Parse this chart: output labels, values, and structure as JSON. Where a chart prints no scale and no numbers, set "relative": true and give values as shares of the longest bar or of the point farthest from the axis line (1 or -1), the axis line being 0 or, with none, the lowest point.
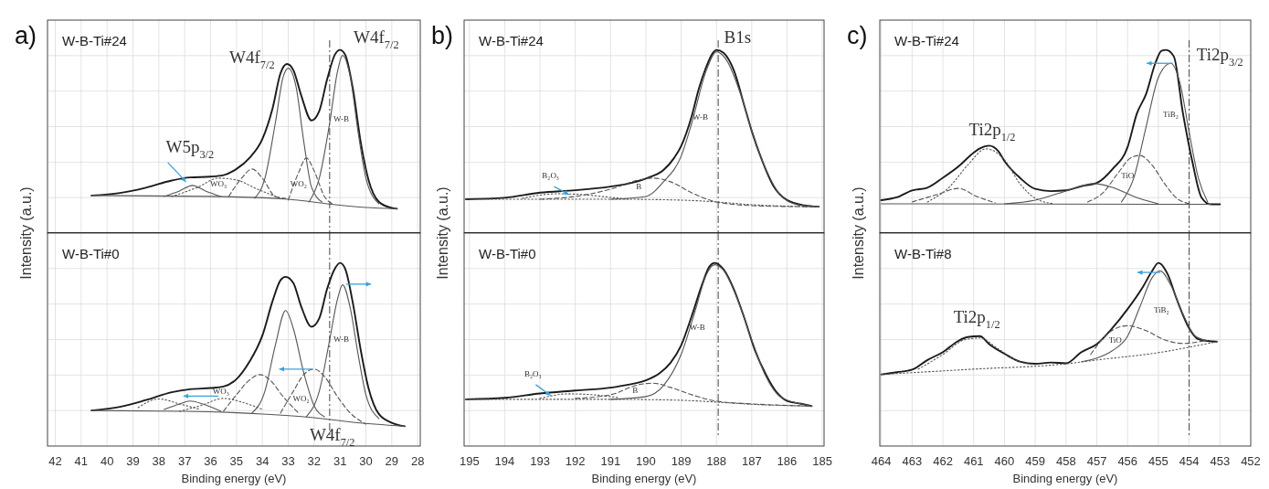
{
  "chart_data": [
    {
      "type": "line",
      "relative": true,
      "title": "W-B-Ti#24",
      "ylabel": "Intensity (a.u.)",
      "xlim": [
        42.3,
        27.9
      ],
      "xticks": [
        42,
        41,
        40,
        39,
        38,
        37,
        36,
        35,
        34,
        33,
        32,
        31,
        30,
        29,
        28
      ],
      "tick_labels": false,
      "grid": true,
      "series": [
        {
          "color": "#1a1a1a",
          "line_style": "solid",
          "x": [
            40.6,
            39.5,
            38.5,
            37.5,
            36.8,
            36,
            35.5,
            35,
            34.5,
            34,
            33.6,
            33.3,
            33.05,
            32.8,
            32.5,
            32.1,
            31.8,
            31.5,
            31.2,
            31.0,
            30.8,
            30.5,
            30.2,
            29.9,
            29.5,
            29,
            28.8
          ],
          "values": [
            0.205,
            0.219,
            0.248,
            0.287,
            0.304,
            0.308,
            0.316,
            0.35,
            0.41,
            0.513,
            0.684,
            0.872,
            0.923,
            0.889,
            0.752,
            0.615,
            0.667,
            0.838,
            0.974,
            1.0,
            0.974,
            0.786,
            0.496,
            0.291,
            0.171,
            0.137,
            0.133
          ]
        },
        {
          "color": "#555555",
          "line_style": "solid",
          "x": [
            40.6,
            36,
            33,
            31.5,
            30,
            28.8
          ],
          "values": [
            0.205,
            0.2,
            0.185,
            0.16,
            0.14,
            0.133
          ]
        },
        {
          "color": "#555555",
          "line_style": "solid",
          "x": [
            32.2,
            31.8,
            31.4,
            31.1,
            30.9,
            30.6,
            30.3,
            30.0,
            29.5
          ],
          "values": [
            0.17,
            0.3,
            0.6,
            0.88,
            0.97,
            0.85,
            0.55,
            0.3,
            0.16
          ]
        },
        {
          "color": "#555555",
          "line_style": "solid",
          "x": [
            34.3,
            33.9,
            33.5,
            33.2,
            33.0,
            32.7,
            32.4,
            32.1,
            31.7
          ],
          "values": [
            0.19,
            0.3,
            0.6,
            0.85,
            0.9,
            0.8,
            0.5,
            0.25,
            0.17
          ]
        },
        {
          "color": "#555555",
          "line_style": "dashed",
          "x": [
            33.0,
            32.6,
            32.3,
            32.0,
            31.6,
            31.3
          ],
          "values": [
            0.18,
            0.33,
            0.41,
            0.34,
            0.2,
            0.16
          ]
        },
        {
          "color": "#555555",
          "line_style": "dashed",
          "x": [
            35.3,
            34.8,
            34.4,
            34.0,
            33.5,
            33.1
          ],
          "values": [
            0.2,
            0.3,
            0.35,
            0.3,
            0.2,
            0.19
          ]
        },
        {
          "color": "#555555",
          "line_style": "dotted",
          "x": [
            37.5,
            36.5,
            35.7,
            35.0,
            34.2,
            33.3
          ],
          "values": [
            0.2,
            0.25,
            0.3,
            0.29,
            0.24,
            0.19
          ]
        },
        {
          "color": "#555555",
          "line_style": "solid",
          "x": [
            37.8,
            37.2,
            36.7,
            36.2,
            35.6
          ],
          "values": [
            0.2,
            0.23,
            0.26,
            0.23,
            0.2
          ]
        }
      ],
      "ref_lines": [
        {
          "axis": "x",
          "value": 31.4
        }
      ],
      "annotations": [
        "a)",
        "W5p$_{3/2}$",
        "W4f$_{7/2}$",
        "W4f$_{7/2}$",
        "WO₃",
        "WO₂",
        "W-B"
      ]
    },
    {
      "type": "line",
      "relative": true,
      "title": "W-B-Ti#0",
      "xlabel": "Binding energy (eV)",
      "xlim": [
        42.3,
        27.9
      ],
      "xticks": [
        42,
        41,
        40,
        39,
        38,
        37,
        36,
        35,
        34,
        33,
        32,
        31,
        30,
        29,
        28
      ],
      "tick_labels": "x",
      "grid": true,
      "series": [
        {
          "color": "#1a1a1a",
          "line_style": "solid",
          "x": [
            40.6,
            39.5,
            38.5,
            37.5,
            36.8,
            36,
            35.5,
            35,
            34.5,
            34,
            33.6,
            33.3,
            33.1,
            32.8,
            32.5,
            32.1,
            31.8,
            31.5,
            31.2,
            31.0,
            30.8,
            30.5,
            30.2,
            29.9,
            29.5,
            29,
            28.5
          ],
          "values": [
            0.194,
            0.214,
            0.251,
            0.294,
            0.31,
            0.317,
            0.325,
            0.365,
            0.46,
            0.603,
            0.794,
            0.905,
            0.924,
            0.889,
            0.762,
            0.651,
            0.698,
            0.857,
            0.968,
            1.0,
            0.968,
            0.778,
            0.524,
            0.317,
            0.175,
            0.127,
            0.108
          ]
        },
        {
          "color": "#555555",
          "line_style": "solid",
          "x": [
            40.6,
            37,
            34,
            32,
            30.5,
            28.5
          ],
          "values": [
            0.194,
            0.19,
            0.175,
            0.155,
            0.13,
            0.108
          ]
        },
        {
          "color": "#555555",
          "line_style": "solid",
          "x": [
            32.3,
            31.8,
            31.4,
            31.1,
            30.9,
            30.6,
            30.3,
            30.0,
            29.5
          ],
          "values": [
            0.16,
            0.3,
            0.58,
            0.8,
            0.88,
            0.75,
            0.5,
            0.28,
            0.15
          ]
        },
        {
          "color": "#555555",
          "line_style": "solid",
          "x": [
            34.4,
            33.9,
            33.5,
            33.1,
            32.8,
            32.4,
            32.0,
            31.6
          ],
          "values": [
            0.18,
            0.3,
            0.55,
            0.74,
            0.64,
            0.4,
            0.22,
            0.16
          ]
        },
        {
          "color": "#555555",
          "line_style": "dashed",
          "x": [
            33.3,
            32.8,
            32.4,
            32.0,
            31.6,
            31.1,
            30.6,
            30.0
          ],
          "values": [
            0.18,
            0.3,
            0.39,
            0.42,
            0.38,
            0.27,
            0.18,
            0.12
          ]
        },
        {
          "color": "#555555",
          "line_style": "dashed",
          "x": [
            35.5,
            35.0,
            34.5,
            34.1,
            33.7,
            33.2,
            32.6
          ],
          "values": [
            0.19,
            0.28,
            0.36,
            0.39,
            0.36,
            0.27,
            0.18
          ]
        },
        {
          "color": "#555555",
          "line_style": "dotted",
          "x": [
            37.2,
            36.4,
            35.5,
            34.8,
            34.0
          ],
          "values": [
            0.19,
            0.22,
            0.26,
            0.24,
            0.2
          ]
        },
        {
          "color": "#555555",
          "line_style": "dotted",
          "x": [
            38.8,
            38.0,
            37.2,
            36.4
          ],
          "values": [
            0.21,
            0.257,
            0.23,
            0.2
          ]
        },
        {
          "color": "#555555",
          "line_style": "solid",
          "x": [
            37.8,
            37.2,
            36.8,
            36.3,
            35.6
          ],
          "values": [
            0.2,
            0.23,
            0.246,
            0.23,
            0.19
          ]
        }
      ],
      "ref_lines": [
        {
          "axis": "x",
          "value": 31.4
        }
      ],
      "annotations": [
        "WO₃",
        "WO₂",
        "W-B",
        "W4f$_{7/2}$"
      ]
    },
    {
      "type": "line",
      "relative": true,
      "title": "W-B-Ti#24",
      "ylabel": "Intensity (a.u.)",
      "xlim": [
        195.15,
        184.95
      ],
      "xticks": [
        195,
        194,
        193,
        192,
        191,
        190,
        189,
        188,
        187,
        186,
        185
      ],
      "tick_labels": false,
      "grid": true,
      "series": [
        {
          "color": "#1a1a1a",
          "line_style": "solid",
          "x": [
            195.1,
            194,
            193,
            192,
            191,
            190.5,
            190,
            189.5,
            189.2,
            189,
            188.7,
            188.5,
            188.3,
            188.1,
            188.0,
            187.8,
            187.5,
            187.2,
            187.0,
            186.7,
            186.4,
            186.0,
            185.5,
            185.1
          ],
          "values": [
            0.185,
            0.193,
            0.221,
            0.234,
            0.254,
            0.27,
            0.298,
            0.344,
            0.41,
            0.475,
            0.639,
            0.787,
            0.902,
            0.984,
            1.0,
            0.984,
            0.885,
            0.689,
            0.557,
            0.393,
            0.262,
            0.18,
            0.151,
            0.144
          ]
        },
        {
          "color": "#555555",
          "line_style": "solid",
          "x": [
            191,
            190,
            189.5,
            189,
            188.7,
            188.3,
            188.0,
            187.7,
            187.3,
            187.0,
            186.6,
            186.2,
            185.7,
            185.1
          ],
          "values": [
            0.185,
            0.2,
            0.28,
            0.42,
            0.6,
            0.88,
            0.99,
            0.94,
            0.75,
            0.56,
            0.35,
            0.21,
            0.155,
            0.144
          ]
        },
        {
          "color": "#555555",
          "line_style": "dashed",
          "x": [
            193,
            192,
            191,
            190.2,
            189.8,
            189.3,
            188.7,
            188,
            187,
            186,
            185.1
          ],
          "values": [
            0.185,
            0.2,
            0.24,
            0.29,
            0.3,
            0.28,
            0.22,
            0.17,
            0.15,
            0.145,
            0.144
          ]
        },
        {
          "color": "#555555",
          "line_style": "dotted",
          "x": [
            193.5,
            192.5,
            191.8,
            191,
            190.5
          ],
          "values": [
            0.19,
            0.215,
            0.21,
            0.195,
            0.185
          ]
        },
        {
          "color": "#555555",
          "line_style": "dotted",
          "x": [
            195.1,
            191,
            189,
            188,
            187,
            185.1
          ],
          "values": [
            0.185,
            0.185,
            0.18,
            0.17,
            0.155,
            0.144
          ]
        }
      ],
      "ref_lines": [
        {
          "axis": "x",
          "value": 187.95
        }
      ],
      "annotations": [
        "b)",
        "B1s",
        "W-B",
        "B",
        "B₂O₃"
      ]
    },
    {
      "type": "line",
      "relative": true,
      "title": "W-B-Ti#0",
      "xlabel": "Binding energy (eV)",
      "xlim": [
        195.15,
        184.95
      ],
      "xticks": [
        195,
        194,
        193,
        192,
        191,
        190,
        189,
        188,
        187,
        186,
        185
      ],
      "tick_labels": "x",
      "grid": true,
      "series": [
        {
          "color": "#1a1a1a",
          "line_style": "solid",
          "x": [
            195.1,
            194,
            193,
            192,
            191,
            190.5,
            190,
            189.6,
            189.3,
            189,
            188.7,
            188.4,
            188.2,
            188.05,
            187.8,
            187.5,
            187.2,
            186.9,
            186.6,
            186.3,
            186.0,
            185.6,
            185.3
          ],
          "values": [
            0.255,
            0.263,
            0.287,
            0.303,
            0.319,
            0.335,
            0.359,
            0.399,
            0.455,
            0.55,
            0.71,
            0.885,
            0.98,
            1.0,
            0.965,
            0.853,
            0.694,
            0.518,
            0.391,
            0.295,
            0.247,
            0.231,
            0.218
          ]
        },
        {
          "color": "#555555",
          "line_style": "solid",
          "x": [
            191,
            190,
            189.5,
            189,
            188.6,
            188.3,
            188.05,
            187.8,
            187.4,
            187.0,
            186.6,
            186.2,
            185.6,
            185.3
          ],
          "values": [
            0.255,
            0.27,
            0.33,
            0.5,
            0.74,
            0.93,
            0.99,
            0.96,
            0.8,
            0.58,
            0.38,
            0.27,
            0.23,
            0.218
          ]
        },
        {
          "color": "#555555",
          "line_style": "dashed",
          "x": [
            192,
            191,
            190.2,
            189.8,
            189.3,
            188.7,
            188,
            187,
            186,
            185.3
          ],
          "values": [
            0.26,
            0.28,
            0.335,
            0.343,
            0.32,
            0.28,
            0.245,
            0.23,
            0.222,
            0.218
          ]
        },
        {
          "color": "#555555",
          "line_style": "dotted",
          "x": [
            193,
            192.2,
            191.5,
            190.8
          ],
          "values": [
            0.26,
            0.285,
            0.28,
            0.265
          ]
        },
        {
          "color": "#555555",
          "line_style": "dotted",
          "x": [
            195.1,
            191,
            189,
            188,
            187,
            185.3
          ],
          "values": [
            0.255,
            0.255,
            0.25,
            0.24,
            0.228,
            0.218
          ]
        }
      ],
      "ref_lines": [
        {
          "axis": "x",
          "value": 187.95
        }
      ],
      "annotations": [
        "W-B",
        "B",
        "B₂O₃"
      ]
    },
    {
      "type": "line",
      "relative": true,
      "title": "W-B-Ti#24",
      "ylabel": "Intensity (a.u.)",
      "xlim": [
        464.05,
        452
      ],
      "xticks": [
        464,
        463,
        462,
        461,
        460,
        459,
        458,
        457,
        456,
        455,
        454,
        453,
        452
      ],
      "tick_labels": false,
      "grid": true,
      "series": [
        {
          "color": "#1a1a1a",
          "line_style": "solid",
          "x": [
            464,
            463.5,
            463,
            462.5,
            462,
            461.5,
            461,
            460.8,
            460.5,
            460.2,
            460,
            459.5,
            459,
            458.5,
            458,
            457.5,
            457,
            456.5,
            456,
            455.7,
            455.4,
            455.1,
            454.9,
            454.75,
            454.5,
            454.2,
            453.9,
            453.6,
            453.3,
            453.0
          ],
          "values": [
            0.18,
            0.195,
            0.233,
            0.248,
            0.302,
            0.363,
            0.439,
            0.462,
            0.477,
            0.447,
            0.393,
            0.302,
            0.241,
            0.229,
            0.233,
            0.256,
            0.274,
            0.348,
            0.47,
            0.652,
            0.759,
            0.927,
            0.995,
            1.0,
            0.965,
            0.652,
            0.393,
            0.195,
            0.157,
            0.157
          ]
        },
        {
          "color": "#555555",
          "line_style": "solid",
          "x": [
            456.2,
            455.8,
            455.4,
            455.0,
            454.6,
            454.3,
            454.0,
            453.7,
            453.4
          ],
          "values": [
            0.17,
            0.3,
            0.58,
            0.85,
            0.927,
            0.82,
            0.55,
            0.3,
            0.17
          ]
        },
        {
          "color": "#555555",
          "line_style": "dashed",
          "x": [
            457.3,
            456.8,
            456.3,
            455.9,
            455.6,
            455.2,
            454.8,
            454.4,
            454.0
          ],
          "values": [
            0.17,
            0.22,
            0.33,
            0.41,
            0.424,
            0.37,
            0.27,
            0.19,
            0.16
          ]
        },
        {
          "color": "#555555",
          "line_style": "solid",
          "x": [
            460,
            459,
            458,
            457.1,
            456.5,
            455.8,
            455
          ],
          "values": [
            0.16,
            0.18,
            0.23,
            0.27,
            0.25,
            0.2,
            0.16
          ]
        },
        {
          "color": "#555555",
          "line_style": "dotted",
          "x": [
            462.5,
            461.8,
            461.2,
            460.6,
            460.0,
            459.5,
            459,
            458.4
          ],
          "values": [
            0.17,
            0.25,
            0.37,
            0.46,
            0.4,
            0.27,
            0.19,
            0.16
          ]
        },
        {
          "color": "#555555",
          "line_style": "dashed",
          "x": [
            463,
            462.2,
            461.5,
            460.9,
            460.3
          ],
          "values": [
            0.17,
            0.21,
            0.244,
            0.2,
            0.165
          ]
        },
        {
          "color": "#555555",
          "line_style": "solid",
          "x": [
            464,
            453.3
          ],
          "values": [
            0.16,
            0.157
          ]
        }
      ],
      "ref_lines": [
        {
          "axis": "x",
          "value": 454.0
        }
      ],
      "annotations": [
        "c)",
        "Ti2p$_{1/2}$",
        "Ti2p$_{3/2}$",
        "TiB₂",
        "TiO"
      ]
    },
    {
      "type": "line",
      "relative": true,
      "title": "W-B-Ti#8",
      "xlabel": "Binding energy (eV)",
      "xlim": [
        464.05,
        452
      ],
      "xticks": [
        464,
        463,
        462,
        461,
        460,
        459,
        458,
        457,
        456,
        455,
        454,
        453,
        452
      ],
      "tick_labels": "x",
      "grid": true,
      "series": [
        {
          "color": "#1a1a1a",
          "line_style": "solid",
          "x": [
            464,
            463.5,
            463,
            462.5,
            462,
            461.5,
            461.2,
            460.8,
            460.5,
            460,
            459.5,
            459,
            458.5,
            458,
            457.5,
            457,
            456.5,
            456,
            455.5,
            455.2,
            455.0,
            454.7,
            454.4,
            454.0,
            453.7,
            453.4,
            453.1
          ],
          "values": [
            0.391,
            0.403,
            0.417,
            0.47,
            0.513,
            0.574,
            0.595,
            0.6,
            0.557,
            0.504,
            0.461,
            0.449,
            0.456,
            0.452,
            0.513,
            0.557,
            0.643,
            0.748,
            0.87,
            0.957,
            1.0,
            0.939,
            0.8,
            0.643,
            0.583,
            0.574,
            0.57
          ]
        },
        {
          "color": "#555555",
          "line_style": "dotted",
          "x": [
            464,
            461,
            458,
            457,
            455,
            453.1
          ],
          "values": [
            0.391,
            0.42,
            0.449,
            0.47,
            0.51,
            0.57
          ]
        },
        {
          "color": "#555555",
          "line_style": "solid",
          "x": [
            457.5,
            457,
            456.5,
            456.0,
            455.6,
            455.2,
            454.95,
            454.6,
            454.2,
            453.8,
            453.4
          ],
          "values": [
            0.46,
            0.48,
            0.52,
            0.6,
            0.76,
            0.92,
            0.957,
            0.88,
            0.72,
            0.6,
            0.575
          ]
        },
        {
          "color": "#555555",
          "line_style": "dashed",
          "x": [
            457.2,
            456.6,
            456.0,
            455.4,
            454.8,
            454.2,
            453.5
          ],
          "values": [
            0.5,
            0.62,
            0.657,
            0.63,
            0.58,
            0.56,
            0.575
          ]
        },
        {
          "color": "#555555",
          "line_style": "dotted",
          "x": [
            462.8,
            462,
            461.3,
            460.8,
            460.2,
            459.5,
            459
          ],
          "values": [
            0.42,
            0.5,
            0.58,
            0.59,
            0.53,
            0.46,
            0.445
          ]
        }
      ],
      "ref_lines": [
        {
          "axis": "x",
          "value": 454.0
        }
      ],
      "annotations": [
        "Ti2p$_{1/2}$",
        "TiB₂",
        "TiO"
      ]
    }
  ]
}
